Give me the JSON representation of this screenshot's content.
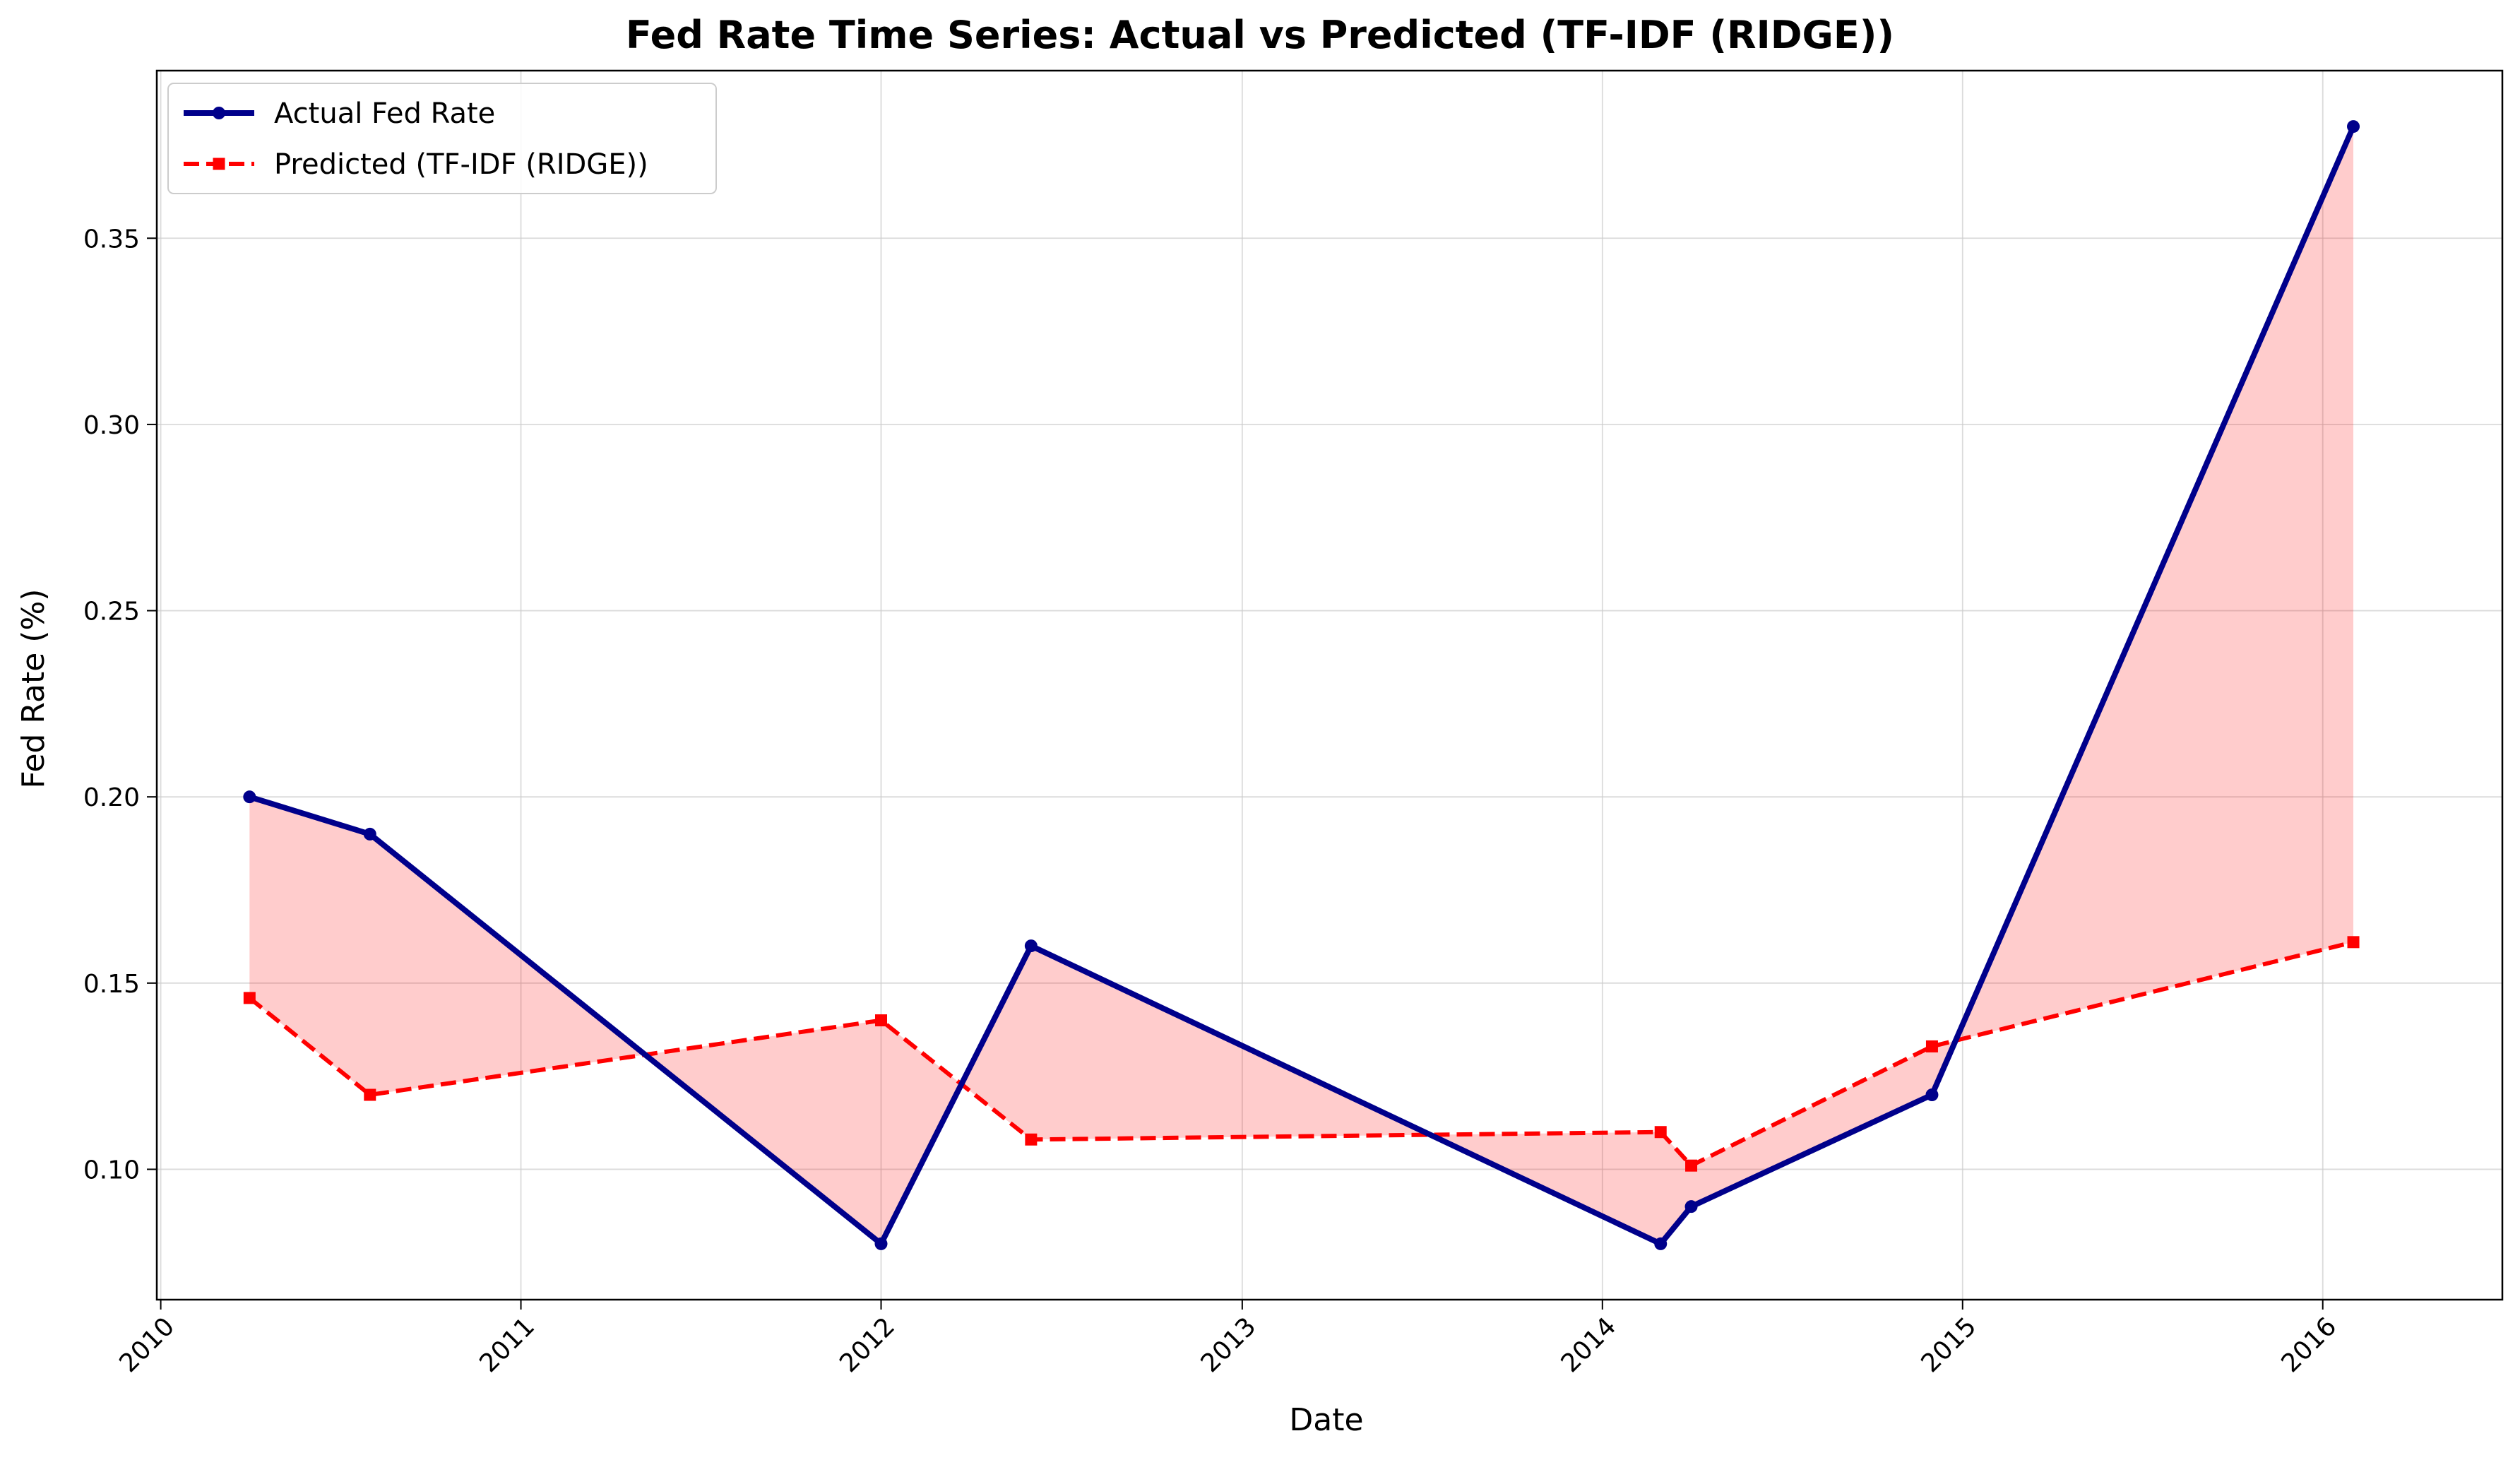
{
  "chart_data": {
    "type": "line",
    "title": "Fed Rate Time Series: Actual vs Predicted (TF-IDF (RIDGE))",
    "xlabel": "Date",
    "ylabel": "Fed Rate (%)",
    "xlim": [
      "2009-12-28",
      "2016-07-01"
    ],
    "ylim": [
      0.065,
      0.395
    ],
    "x_ticks": [
      "2010",
      "2011",
      "2012",
      "2013",
      "2014",
      "2015",
      "2016"
    ],
    "y_ticks": [
      "0.10",
      "0.15",
      "0.20",
      "0.25",
      "0.30",
      "0.35"
    ],
    "grid": true,
    "legend_position": "upper left",
    "x": [
      "2010-04-01",
      "2010-08-01",
      "2012-01-01",
      "2012-06-01",
      "2014-03-01",
      "2014-04-01",
      "2014-12-01",
      "2016-02-01"
    ],
    "series": [
      {
        "name": "Actual Fed Rate",
        "color": "#00008b",
        "marker": "circle",
        "linestyle": "solid",
        "values": [
          0.2,
          0.19,
          0.08,
          0.16,
          0.08,
          0.09,
          0.12,
          0.38
        ]
      },
      {
        "name": "Predicted (TF-IDF (RIDGE))",
        "color": "#ff0000",
        "marker": "square",
        "linestyle": "dashed",
        "values": [
          0.146,
          0.12,
          0.14,
          0.108,
          0.11,
          0.101,
          0.133,
          0.161
        ]
      }
    ],
    "fill_between": {
      "color": "#ff0000",
      "opacity": 0.2
    }
  }
}
